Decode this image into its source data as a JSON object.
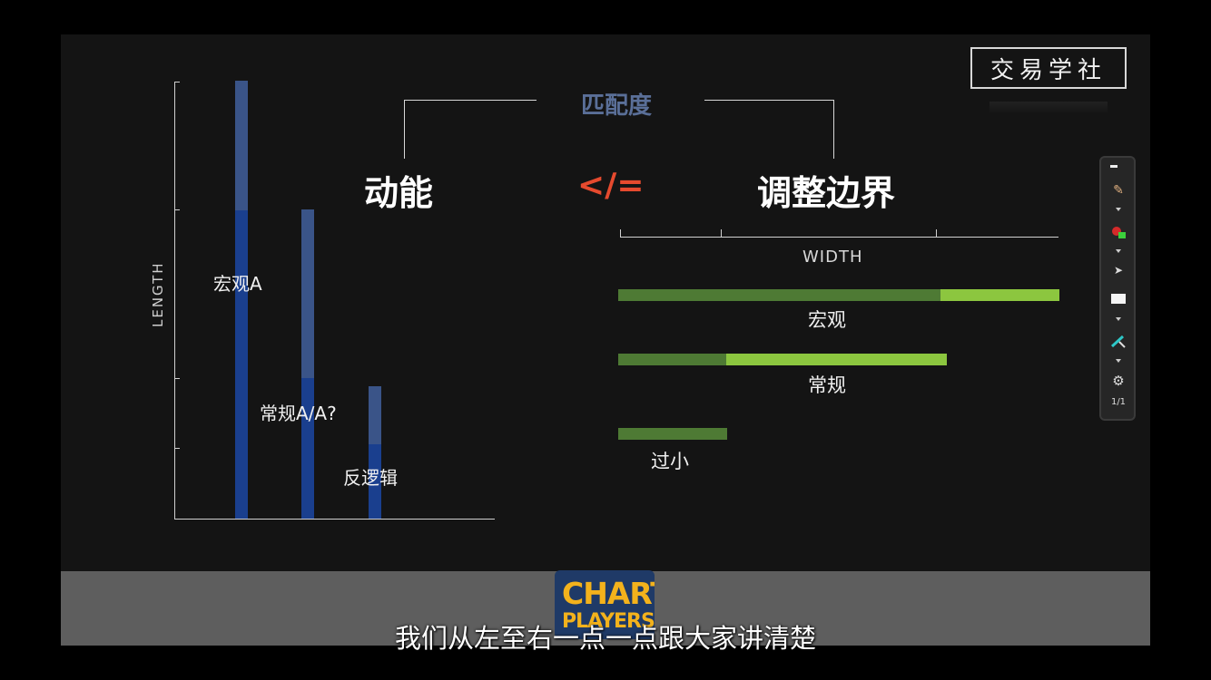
{
  "brand": {
    "text": "交易学社"
  },
  "left_chart": {
    "ylabel": "LENGTH",
    "bars": [
      {
        "label": "宏观A"
      },
      {
        "label": "常规A/A?"
      },
      {
        "label": "反逻辑"
      }
    ]
  },
  "header": {
    "top_label": "匹配度",
    "left_term": "动能",
    "operator": "</=",
    "right_term": "调整边界"
  },
  "width_chart": {
    "xlabel": "WIDTH",
    "bars": [
      {
        "label": "宏观"
      },
      {
        "label": "常规"
      },
      {
        "label": "过小"
      }
    ]
  },
  "toolbar": {
    "page": "1/1",
    "icons": [
      "pen-icon",
      "color-picker-icon",
      "pointer-icon",
      "eraser-icon",
      "highlighter-icon",
      "settings-icon"
    ]
  },
  "logo": {
    "line1": "CHART",
    "line2": "PLAYERS"
  },
  "subtitle": "我们从左至右一点一点跟大家讲清楚",
  "colors": {
    "accent_operator": "#e64a2e",
    "bar_blue_dark": "#1a3f8e",
    "bar_blue_light": "#3a5488",
    "bar_green_dark": "#4e7a34",
    "bar_green_light": "#8cc63f",
    "logo_yellow": "#f3b21c"
  }
}
